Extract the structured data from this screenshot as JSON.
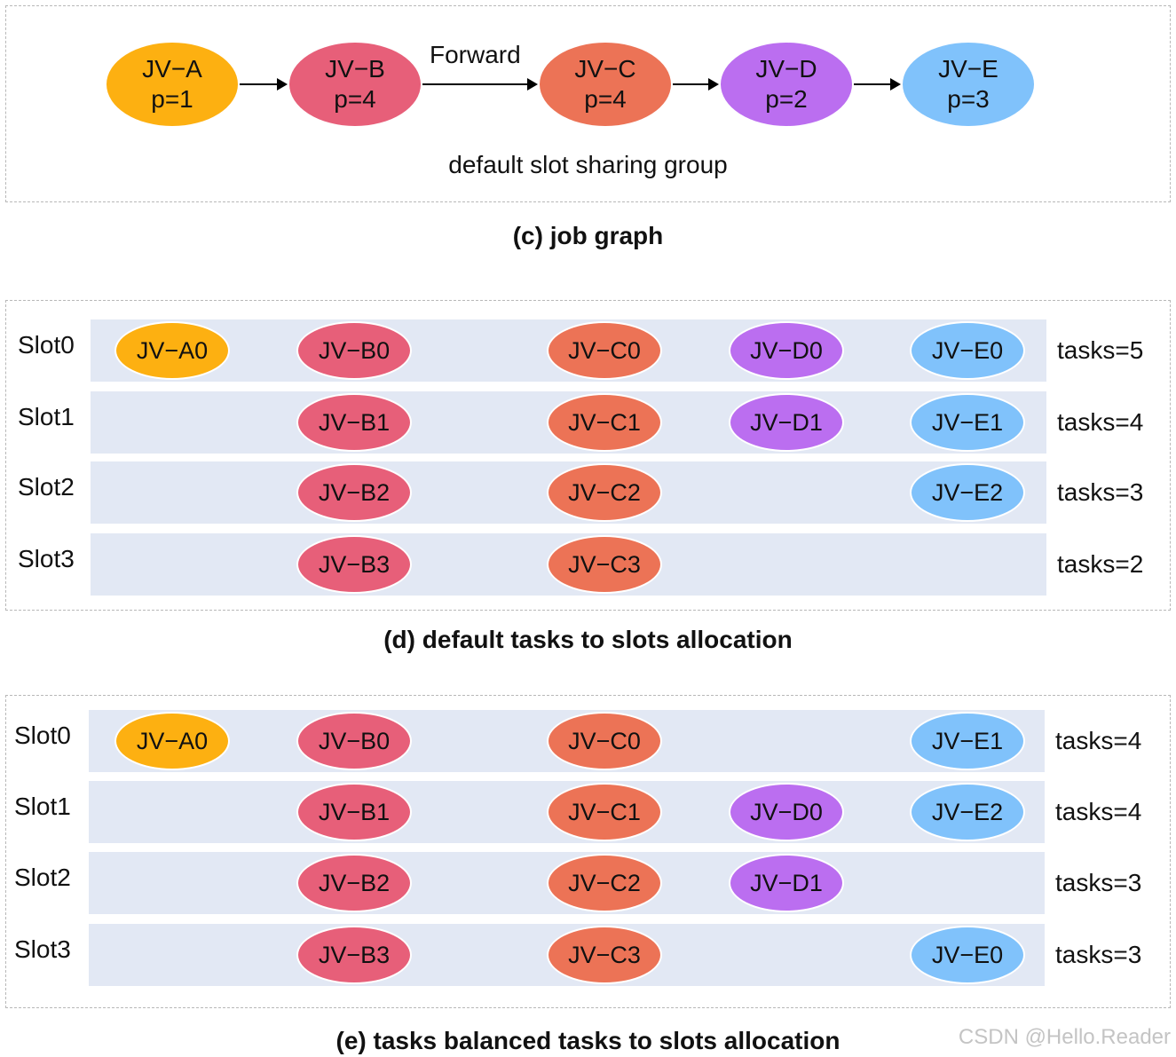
{
  "job_graph": {
    "caption": "(c) job graph",
    "group_label": "default slot sharing group",
    "edge_label": "Forward",
    "nodes": [
      {
        "name": "JV−A",
        "p": "p=1",
        "color": "#fdb011"
      },
      {
        "name": "JV−B",
        "p": "p=4",
        "color": "#e75f79"
      },
      {
        "name": "JV−C",
        "p": "p=4",
        "color": "#ec7356"
      },
      {
        "name": "JV−D",
        "p": "p=2",
        "color": "#bb6ef0"
      },
      {
        "name": "JV−E",
        "p": "p=3",
        "color": "#80c2fb"
      }
    ]
  },
  "default_allocation": {
    "caption": "(d) default tasks to slots allocation",
    "slots": [
      {
        "label": "Slot0",
        "tasks_label": "tasks=5",
        "tasks": [
          "JV−A0",
          "JV−B0",
          "JV−C0",
          "JV−D0",
          "JV−E0"
        ]
      },
      {
        "label": "Slot1",
        "tasks_label": "tasks=4",
        "tasks": [
          "",
          "JV−B1",
          "JV−C1",
          "JV−D1",
          "JV−E1"
        ]
      },
      {
        "label": "Slot2",
        "tasks_label": "tasks=3",
        "tasks": [
          "",
          "JV−B2",
          "JV−C2",
          "",
          "JV−E2"
        ]
      },
      {
        "label": "Slot3",
        "tasks_label": "tasks=2",
        "tasks": [
          "",
          "JV−B3",
          "JV−C3",
          "",
          ""
        ]
      }
    ]
  },
  "balanced_allocation": {
    "caption": "(e) tasks balanced tasks to slots allocation",
    "slots": [
      {
        "label": "Slot0",
        "tasks_label": "tasks=4",
        "tasks": [
          "JV−A0",
          "JV−B0",
          "JV−C0",
          "",
          "JV−E1"
        ]
      },
      {
        "label": "Slot1",
        "tasks_label": "tasks=4",
        "tasks": [
          "",
          "JV−B1",
          "JV−C1",
          "JV−D0",
          "JV−E2"
        ]
      },
      {
        "label": "Slot2",
        "tasks_label": "tasks=3",
        "tasks": [
          "",
          "JV−B2",
          "JV−C2",
          "JV−D1",
          ""
        ]
      },
      {
        "label": "Slot3",
        "tasks_label": "tasks=3",
        "tasks": [
          "",
          "JV−B3",
          "JV−C3",
          "",
          "JV−E0"
        ]
      }
    ]
  },
  "watermark": "CSDN @Hello.Reader"
}
